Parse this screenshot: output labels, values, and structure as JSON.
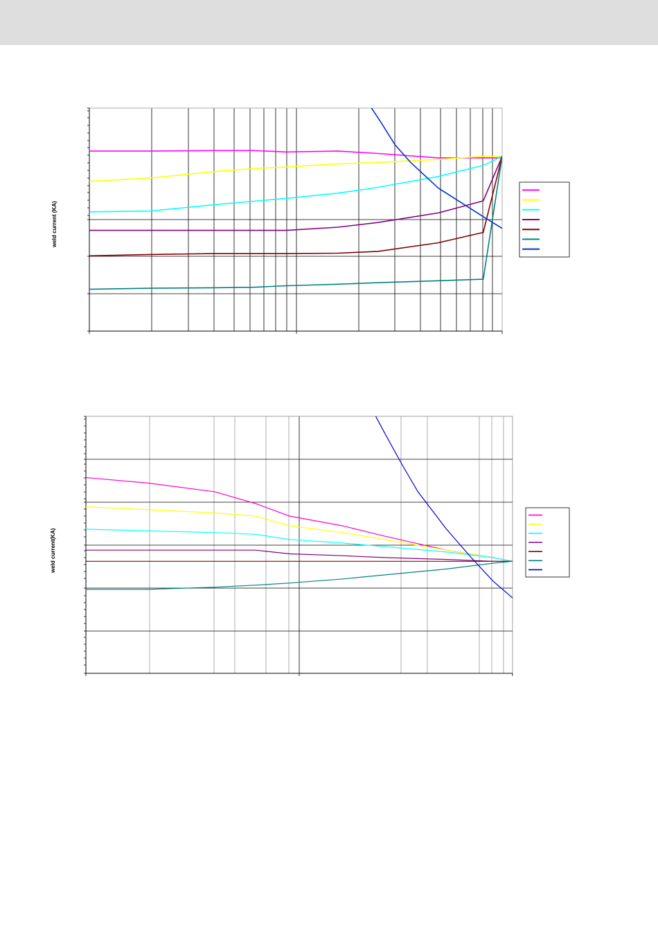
{
  "page": {
    "header_color": "#dedede"
  },
  "charts": [
    {
      "type": "line",
      "ylabel": "weld current (KA)",
      "xscale": "log",
      "yscale": "log",
      "grid": true,
      "legend_placement": "right",
      "series_colors": [
        "#ff00ff",
        "#ffff00",
        "#00ffff",
        "#800080",
        "#800000",
        "#008080",
        "#0033cc"
      ],
      "series": [
        {
          "values": [
            [
              0.1,
              0.838
            ],
            [
              0.14,
              0.838
            ],
            [
              0.2,
              0.84
            ],
            [
              0.25,
              0.84
            ],
            [
              0.3,
              0.835
            ],
            [
              0.4,
              0.838
            ],
            [
              0.5,
              0.83
            ],
            [
              0.7,
              0.815
            ],
            [
              0.9,
              0.815
            ],
            [
              1.0,
              0.815
            ]
          ]
        },
        {
          "values": [
            [
              0.1,
              0.74
            ],
            [
              0.14,
              0.75
            ],
            [
              0.2,
              0.77
            ],
            [
              0.25,
              0.78
            ],
            [
              0.3,
              0.785
            ],
            [
              0.4,
              0.795
            ],
            [
              0.5,
              0.8
            ],
            [
              0.7,
              0.81
            ],
            [
              0.9,
              0.82
            ],
            [
              1.0,
              0.82
            ]
          ]
        },
        {
          "values": [
            [
              0.1,
              0.653
            ],
            [
              0.14,
              0.655
            ],
            [
              0.2,
              0.672
            ],
            [
              0.25,
              0.682
            ],
            [
              0.3,
              0.69
            ],
            [
              0.4,
              0.705
            ],
            [
              0.5,
              0.722
            ],
            [
              0.7,
              0.755
            ],
            [
              0.9,
              0.79
            ],
            [
              1.0,
              0.82
            ]
          ]
        },
        {
          "values": [
            [
              0.1,
              0.605
            ],
            [
              0.14,
              0.605
            ],
            [
              0.2,
              0.605
            ],
            [
              0.25,
              0.605
            ],
            [
              0.3,
              0.605
            ],
            [
              0.4,
              0.613
            ],
            [
              0.5,
              0.625
            ],
            [
              0.7,
              0.65
            ],
            [
              0.9,
              0.683
            ],
            [
              1.0,
              0.82
            ]
          ]
        },
        {
          "values": [
            [
              0.1,
              0.545
            ],
            [
              0.14,
              0.548
            ],
            [
              0.2,
              0.55
            ],
            [
              0.25,
              0.55
            ],
            [
              0.3,
              0.55
            ],
            [
              0.4,
              0.551
            ],
            [
              0.5,
              0.555
            ],
            [
              0.7,
              0.575
            ],
            [
              0.9,
              0.6
            ],
            [
              1.0,
              0.82
            ]
          ]
        },
        {
          "values": [
            [
              0.1,
              0.475
            ],
            [
              0.14,
              0.477
            ],
            [
              0.2,
              0.478
            ],
            [
              0.25,
              0.479
            ],
            [
              0.3,
              0.482
            ],
            [
              0.4,
              0.485
            ],
            [
              0.5,
              0.488
            ],
            [
              0.7,
              0.492
            ],
            [
              0.9,
              0.495
            ],
            [
              1.0,
              0.82
            ]
          ]
        },
        {
          "values": [
            [
              0.47,
              1.03
            ],
            [
              0.51,
              0.94
            ],
            [
              0.55,
              0.86
            ],
            [
              0.6,
              0.8
            ],
            [
              0.7,
              0.72
            ],
            [
              0.9,
              0.64
            ],
            [
              1.0,
              0.61
            ]
          ]
        }
      ]
    },
    {
      "type": "line",
      "ylabel": "weld current(KA)",
      "xscale": "log",
      "yscale": "log",
      "grid": true,
      "legend_placement": "right",
      "series_colors": [
        "#ff00cc",
        "#ffff00",
        "#00ffff",
        "#800080",
        "#800000",
        "#008080",
        "#0000cc"
      ],
      "series": [
        {
          "values": [
            [
              0.1,
              0.95
            ],
            [
              0.14,
              0.93
            ],
            [
              0.2,
              0.9
            ],
            [
              0.25,
              0.86
            ],
            [
              0.3,
              0.82
            ],
            [
              0.4,
              0.79
            ],
            [
              0.5,
              0.76
            ],
            [
              0.7,
              0.72
            ],
            [
              0.9,
              0.7
            ],
            [
              1.0,
              0.69
            ]
          ]
        },
        {
          "values": [
            [
              0.1,
              0.85
            ],
            [
              0.14,
              0.84
            ],
            [
              0.2,
              0.83
            ],
            [
              0.25,
              0.82
            ],
            [
              0.3,
              0.79
            ],
            [
              0.4,
              0.77
            ],
            [
              0.5,
              0.75
            ],
            [
              0.7,
              0.72
            ],
            [
              0.9,
              0.7
            ],
            [
              1.0,
              0.69
            ]
          ]
        },
        {
          "values": [
            [
              0.1,
              0.78
            ],
            [
              0.14,
              0.775
            ],
            [
              0.2,
              0.77
            ],
            [
              0.25,
              0.765
            ],
            [
              0.3,
              0.75
            ],
            [
              0.4,
              0.74
            ],
            [
              0.5,
              0.73
            ],
            [
              0.7,
              0.715
            ],
            [
              0.9,
              0.7
            ],
            [
              1.0,
              0.69
            ]
          ]
        },
        {
          "values": [
            [
              0.1,
              0.72
            ],
            [
              0.14,
              0.72
            ],
            [
              0.2,
              0.72
            ],
            [
              0.25,
              0.72
            ],
            [
              0.3,
              0.71
            ],
            [
              0.4,
              0.705
            ],
            [
              0.5,
              0.7
            ],
            [
              0.7,
              0.695
            ],
            [
              0.9,
              0.69
            ],
            [
              1.0,
              0.69
            ]
          ]
        },
        {
          "values": [
            [
              0.1,
              0.69
            ],
            [
              0.14,
              0.69
            ],
            [
              0.2,
              0.69
            ],
            [
              0.25,
              0.69
            ],
            [
              0.3,
              0.69
            ],
            [
              0.4,
              0.69
            ],
            [
              0.5,
              0.69
            ],
            [
              0.7,
              0.69
            ],
            [
              0.9,
              0.69
            ],
            [
              1.0,
              0.69
            ]
          ]
        },
        {
          "values": [
            [
              0.1,
              0.62
            ],
            [
              0.14,
              0.62
            ],
            [
              0.2,
              0.625
            ],
            [
              0.25,
              0.63
            ],
            [
              0.3,
              0.635
            ],
            [
              0.4,
              0.645
            ],
            [
              0.5,
              0.655
            ],
            [
              0.7,
              0.67
            ],
            [
              0.9,
              0.685
            ],
            [
              1.0,
              0.69
            ]
          ]
        },
        {
          "values": [
            [
              0.4,
              1.5
            ],
            [
              0.45,
              1.3
            ],
            [
              0.5,
              1.13
            ],
            [
              0.55,
              1.0
            ],
            [
              0.6,
              0.9
            ],
            [
              0.7,
              0.78
            ],
            [
              0.8,
              0.7
            ],
            [
              0.9,
              0.64
            ],
            [
              1.0,
              0.6
            ]
          ]
        }
      ]
    }
  ]
}
